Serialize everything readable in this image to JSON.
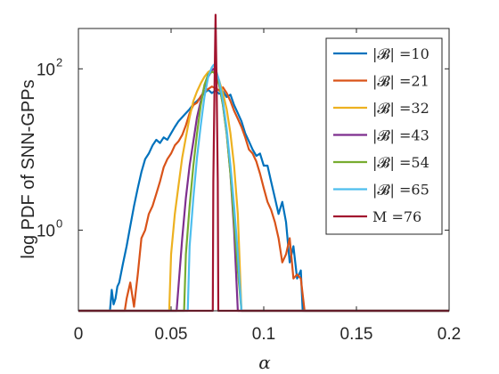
{
  "chart_data": {
    "type": "line",
    "title": "",
    "xlabel": "α",
    "ylabel": "log PDF of SNN-GPPs",
    "xlim": [
      0,
      0.2
    ],
    "ylim_log10": [
      -1.0,
      2.5
    ],
    "y_scale": "log",
    "xticks": [
      0,
      0.05,
      0.1,
      0.15,
      0.2
    ],
    "xtick_labels": [
      "0",
      "0.05",
      "0.1",
      "0.15",
      "0.2"
    ],
    "yticks_log10": [
      0,
      2
    ],
    "ytick_labels": [
      {
        "base": "10",
        "exp": "0"
      },
      {
        "base": "10",
        "exp": "2"
      }
    ],
    "grid": false,
    "legend_position": "top-right",
    "series": [
      {
        "name": "|𝓑| =10",
        "color": "#0072BD",
        "x": [
          0.0,
          0.017,
          0.018,
          0.019,
          0.02,
          0.021,
          0.022,
          0.024,
          0.026,
          0.028,
          0.03,
          0.032,
          0.034,
          0.036,
          0.038,
          0.04,
          0.042,
          0.044,
          0.046,
          0.048,
          0.05,
          0.052,
          0.054,
          0.056,
          0.058,
          0.06,
          0.062,
          0.064,
          0.066,
          0.068,
          0.07,
          0.072,
          0.074,
          0.076,
          0.078,
          0.08,
          0.082,
          0.084,
          0.086,
          0.088,
          0.09,
          0.092,
          0.094,
          0.096,
          0.098,
          0.1,
          0.102,
          0.104,
          0.106,
          0.108,
          0.11,
          0.112,
          0.114,
          0.116,
          0.118,
          0.12,
          0.121,
          0.2
        ],
        "y_log10": [
          -1.0,
          -1.0,
          -0.74,
          -0.92,
          -0.85,
          -0.7,
          -0.65,
          -0.42,
          -0.2,
          0.05,
          0.3,
          0.52,
          0.72,
          0.88,
          0.95,
          1.05,
          1.12,
          1.08,
          1.15,
          1.12,
          1.2,
          1.28,
          1.35,
          1.4,
          1.45,
          1.5,
          1.56,
          1.6,
          1.65,
          1.7,
          1.74,
          1.7,
          1.73,
          1.69,
          1.72,
          1.65,
          1.68,
          1.55,
          1.45,
          1.35,
          1.2,
          1.1,
          1.0,
          0.92,
          0.95,
          0.8,
          0.8,
          0.6,
          0.4,
          0.2,
          0.35,
          0.1,
          -0.4,
          -0.2,
          -0.6,
          -0.5,
          -1.0,
          -1.0
        ]
      },
      {
        "name": "|𝓑| =21",
        "color": "#D95319",
        "x": [
          0.0,
          0.025,
          0.026,
          0.028,
          0.03,
          0.032,
          0.034,
          0.036,
          0.038,
          0.04,
          0.042,
          0.044,
          0.046,
          0.048,
          0.05,
          0.052,
          0.054,
          0.056,
          0.058,
          0.06,
          0.062,
          0.064,
          0.066,
          0.068,
          0.07,
          0.072,
          0.074,
          0.076,
          0.078,
          0.08,
          0.082,
          0.084,
          0.086,
          0.088,
          0.09,
          0.092,
          0.094,
          0.096,
          0.098,
          0.1,
          0.102,
          0.104,
          0.106,
          0.108,
          0.11,
          0.112,
          0.114,
          0.116,
          0.118,
          0.12,
          0.122,
          0.2
        ],
        "y_log10": [
          -1.0,
          -1.0,
          -0.85,
          -0.65,
          -0.95,
          -0.55,
          -0.1,
          0.0,
          0.2,
          0.3,
          0.45,
          0.6,
          0.78,
          0.88,
          0.95,
          1.05,
          1.1,
          1.18,
          1.3,
          1.45,
          1.55,
          1.58,
          1.66,
          1.72,
          1.75,
          1.78,
          1.76,
          1.73,
          1.77,
          1.7,
          1.6,
          1.48,
          1.38,
          1.28,
          1.15,
          1.0,
          0.95,
          0.85,
          0.7,
          0.52,
          0.35,
          0.25,
          0.1,
          -0.1,
          -0.4,
          -0.3,
          -0.1,
          -0.6,
          -0.55,
          -0.6,
          -1.0,
          -1.0
        ]
      },
      {
        "name": "|𝓑| =32",
        "color": "#EDB120",
        "x": [
          0.0,
          0.049,
          0.05,
          0.052,
          0.054,
          0.056,
          0.058,
          0.06,
          0.062,
          0.064,
          0.066,
          0.068,
          0.07,
          0.072,
          0.073,
          0.074,
          0.076,
          0.078,
          0.08,
          0.082,
          0.084,
          0.086,
          0.088,
          0.2
        ],
        "y_log10": [
          -1.0,
          -1.0,
          -0.3,
          0.2,
          0.55,
          0.9,
          1.15,
          1.4,
          1.6,
          1.72,
          1.82,
          1.9,
          1.96,
          1.99,
          2.0,
          1.96,
          1.85,
          1.7,
          1.5,
          1.2,
          0.8,
          0.2,
          -1.0,
          -1.0
        ]
      },
      {
        "name": "|𝓑| =43",
        "color": "#7E2F8E",
        "x": [
          0.0,
          0.053,
          0.054,
          0.056,
          0.058,
          0.06,
          0.062,
          0.064,
          0.066,
          0.068,
          0.07,
          0.072,
          0.073,
          0.074,
          0.076,
          0.078,
          0.08,
          0.082,
          0.084,
          0.086,
          0.2
        ],
        "y_log10": [
          -1.0,
          -1.0,
          -0.7,
          -0.1,
          0.4,
          0.8,
          1.1,
          1.4,
          1.6,
          1.78,
          1.9,
          1.98,
          2.0,
          1.96,
          1.8,
          1.55,
          1.2,
          0.7,
          0.0,
          -1.0,
          -1.0
        ]
      },
      {
        "name": "|𝓑| =54",
        "color": "#77AC30",
        "x": [
          0.0,
          0.057,
          0.058,
          0.06,
          0.062,
          0.064,
          0.066,
          0.068,
          0.07,
          0.072,
          0.073,
          0.074,
          0.076,
          0.078,
          0.08,
          0.082,
          0.084,
          0.086,
          0.088,
          0.2
        ],
        "y_log10": [
          -1.0,
          -1.0,
          -0.3,
          0.3,
          0.8,
          1.2,
          1.55,
          1.8,
          1.93,
          1.96,
          1.96,
          1.92,
          1.8,
          1.55,
          1.2,
          0.7,
          0.1,
          -0.5,
          -1.0,
          -1.0
        ]
      },
      {
        "name": "|𝓑| =65",
        "color": "#4DBEEE",
        "x": [
          0.0,
          0.059,
          0.06,
          0.062,
          0.064,
          0.066,
          0.068,
          0.07,
          0.072,
          0.073,
          0.074,
          0.076,
          0.078,
          0.08,
          0.082,
          0.084,
          0.086,
          0.088,
          0.2
        ],
        "y_log10": [
          -1.0,
          -1.0,
          -0.2,
          0.4,
          0.9,
          1.3,
          1.65,
          1.9,
          2.02,
          2.05,
          2.0,
          1.85,
          1.6,
          1.25,
          0.8,
          0.3,
          -0.3,
          -1.0,
          -1.0
        ]
      },
      {
        "name": "M =76",
        "color": "#A2142F",
        "x": [
          0.0,
          0.0725,
          0.0728,
          0.0735,
          0.074,
          0.0745,
          0.0752,
          0.0755,
          0.2
        ],
        "y_log10": [
          -1.0,
          -1.0,
          0.6,
          1.9,
          2.67,
          1.9,
          0.6,
          -1.0,
          -1.0
        ]
      }
    ]
  }
}
